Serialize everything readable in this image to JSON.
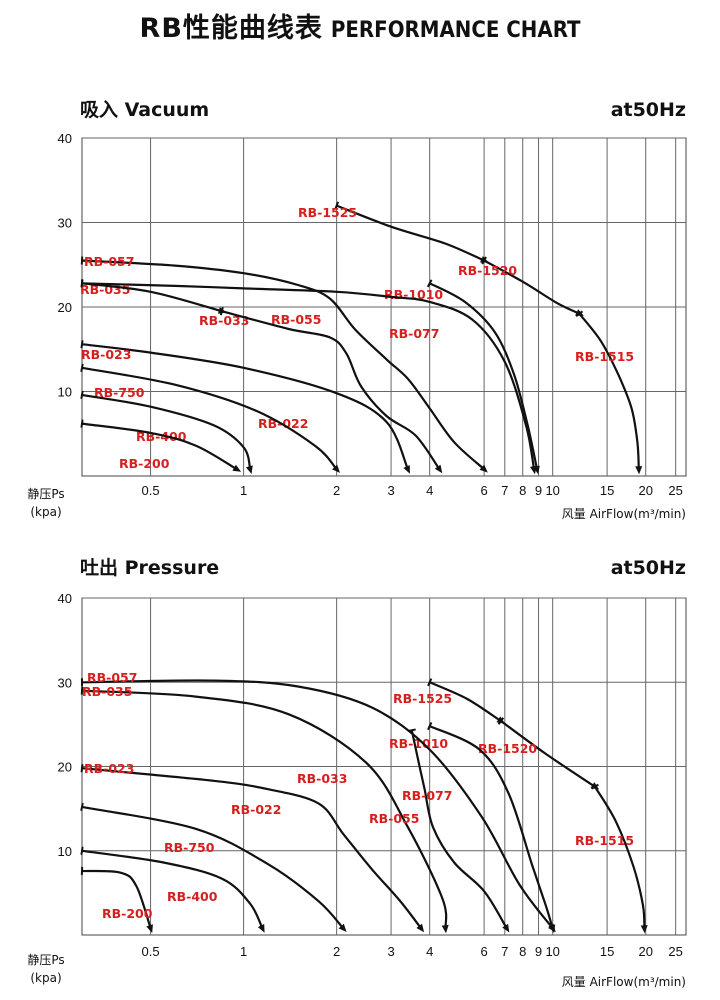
{
  "page": {
    "title": "RB性能曲线表",
    "title_en": "PERFORMANCE CHART"
  },
  "colors": {
    "curve": "#111111",
    "label": "#d62020",
    "grid": "#666666"
  },
  "chart_data": [
    {
      "type": "line",
      "title": "吸入 Vacuum",
      "frequency_label": "at50Hz",
      "ylabel": "静压Ps",
      "ylabel_unit": "(kpa)",
      "xlabel": "风量 AirFlow(m³/min)",
      "x_scale": "log",
      "xlim": [
        0.3,
        27
      ],
      "ylim": [
        0,
        40
      ],
      "x_ticks": [
        0.5,
        1,
        2,
        3,
        4,
        6,
        7,
        8,
        9,
        10,
        15,
        20,
        25
      ],
      "y_ticks": [
        10,
        20,
        30,
        40
      ],
      "grid": true,
      "series": [
        {
          "name": "RB-1525",
          "points": [
            [
              2,
              32
            ],
            [
              3,
              29.5
            ],
            [
              4.5,
              27.5
            ],
            [
              6,
              25.5
            ]
          ]
        },
        {
          "name": "RB-1520",
          "points": [
            [
              6,
              25.5
            ],
            [
              8,
              23
            ],
            [
              10.3,
              20.5
            ],
            [
              12.2,
              19.2
            ]
          ]
        },
        {
          "name": "RB-1515",
          "points": [
            [
              12.2,
              19.2
            ],
            [
              14.3,
              16
            ],
            [
              16.3,
              12
            ],
            [
              18,
              8
            ],
            [
              18.8,
              4
            ],
            [
              19,
              0.8
            ]
          ]
        },
        {
          "name": "RB-1010",
          "points": [
            [
              4,
              22.8
            ],
            [
              5.2,
              20.6
            ],
            [
              6.5,
              17
            ],
            [
              7.5,
              12
            ],
            [
              8.3,
              6
            ],
            [
              8.9,
              0.8
            ]
          ]
        },
        {
          "name": "RB-057",
          "points": [
            [
              0.3,
              25.5
            ],
            [
              0.6,
              24.9
            ],
            [
              1,
              24
            ],
            [
              1.5,
              22.6
            ],
            [
              1.9,
              21
            ],
            [
              2.3,
              17.3
            ],
            [
              2.9,
              13.8
            ],
            [
              3.4,
              11.5
            ],
            [
              4,
              8
            ],
            [
              4.8,
              4
            ],
            [
              6,
              0.8
            ]
          ]
        },
        {
          "name": "RB-035",
          "points": [
            [
              0.3,
              22.8
            ],
            [
              0.6,
              22.5
            ],
            [
              1,
              22.2
            ],
            [
              2,
              21.8
            ],
            [
              3,
              21.2
            ],
            [
              4,
              20.6
            ],
            [
              5.5,
              18.5
            ],
            [
              7,
              13.5
            ],
            [
              8.2,
              6
            ],
            [
              8.7,
              0.8
            ]
          ]
        },
        {
          "name": "RB-033",
          "points": [
            [
              0.3,
              22.8
            ],
            [
              0.5,
              21.8
            ],
            [
              0.85,
              19.5
            ]
          ]
        },
        {
          "name": "RB-055",
          "points": [
            [
              0.85,
              19.5
            ],
            [
              1.4,
              17.4
            ],
            [
              1.9,
              16.4
            ],
            [
              2.15,
              14.5
            ],
            [
              2.4,
              10.6
            ],
            [
              2.9,
              7.1
            ],
            [
              3.6,
              4.8
            ],
            [
              4.3,
              0.8
            ]
          ]
        },
        {
          "name": "RB-077",
          "points": []
        },
        {
          "name": "RB-023",
          "points": [
            [
              0.3,
              15.6
            ],
            [
              0.5,
              14.6
            ],
            [
              1,
              12.8
            ],
            [
              2,
              9.8
            ],
            [
              2.9,
              6.4
            ],
            [
              3.4,
              0.8
            ]
          ]
        },
        {
          "name": "RB-022",
          "points": []
        },
        {
          "name": "RB-750",
          "points": [
            [
              0.3,
              12.8
            ],
            [
              0.6,
              10.8
            ],
            [
              1.1,
              7.7
            ],
            [
              1.7,
              3.6
            ],
            [
              2,
              0.8
            ]
          ]
        },
        {
          "name": "RB-400",
          "points": [
            [
              0.3,
              9.6
            ],
            [
              0.5,
              8.2
            ],
            [
              0.8,
              6.0
            ],
            [
              1.0,
              3.4
            ],
            [
              1.05,
              0.8
            ]
          ]
        },
        {
          "name": "RB-200",
          "points": [
            [
              0.3,
              6.2
            ],
            [
              0.5,
              5.1
            ],
            [
              0.7,
              3.6
            ],
            [
              0.95,
              0.8
            ]
          ]
        }
      ]
    },
    {
      "type": "line",
      "title": "吐出 Pressure",
      "frequency_label": "at50Hz",
      "ylabel": "静压Ps",
      "ylabel_unit": "(kpa)",
      "xlabel": "风量 AirFlow(m³/min)",
      "x_scale": "log",
      "xlim": [
        0.3,
        27
      ],
      "ylim": [
        0,
        40
      ],
      "x_ticks": [
        0.5,
        1,
        2,
        3,
        4,
        6,
        7,
        8,
        9,
        10,
        15,
        20,
        25
      ],
      "y_ticks": [
        10,
        20,
        30,
        40
      ],
      "grid": true,
      "series": [
        {
          "name": "RB-1525",
          "points": [
            [
              4,
              30
            ],
            [
              5.3,
              28
            ],
            [
              6.8,
              25.4
            ]
          ]
        },
        {
          "name": "RB-1520",
          "points": [
            [
              6.8,
              25.4
            ],
            [
              9.5,
              21.5
            ],
            [
              13.7,
              17.6
            ]
          ]
        },
        {
          "name": "RB-1515",
          "points": [
            [
              13.7,
              17.6
            ],
            [
              16,
              13.5
            ],
            [
              18.3,
              8
            ],
            [
              19.6,
              3.5
            ],
            [
              19.8,
              0.8
            ]
          ]
        },
        {
          "name": "RB-1010",
          "points": [
            [
              4,
              24.8
            ],
            [
              5.8,
              22
            ],
            [
              7.2,
              16.8
            ],
            [
              8.6,
              8.2
            ],
            [
              9.5,
              3.5
            ],
            [
              10,
              0.8
            ]
          ]
        },
        {
          "name": "RB-057",
          "points": [
            [
              0.3,
              30
            ],
            [
              0.8,
              30.2
            ],
            [
              1.5,
              29.5
            ],
            [
              2.6,
              27
            ],
            [
              4,
              22
            ],
            [
              5.9,
              14
            ],
            [
              7.8,
              6
            ],
            [
              10,
              0.8
            ]
          ]
        },
        {
          "name": "RB-035",
          "points": [
            [
              0.3,
              29
            ],
            [
              0.7,
              28.3
            ],
            [
              1.4,
              26.2
            ],
            [
              2.5,
              20.4
            ],
            [
              3.4,
              12.8
            ],
            [
              4.4,
              4.3
            ],
            [
              4.5,
              0.8
            ]
          ]
        },
        {
          "name": "RB-033",
          "points": []
        },
        {
          "name": "RB-055",
          "points": [
            [
              3.5,
              24.3
            ],
            [
              3.7,
              20.2
            ],
            [
              3.85,
              17.3
            ],
            [
              4.1,
              12.8
            ],
            [
              4.8,
              8.6
            ],
            [
              6.0,
              5.2
            ],
            [
              7.1,
              0.8
            ]
          ]
        },
        {
          "name": "RB-077",
          "points": []
        },
        {
          "name": "RB-023",
          "points": [
            [
              0.3,
              19.8
            ],
            [
              0.8,
              18.3
            ],
            [
              1.2,
              17.3
            ],
            [
              1.75,
              15.6
            ],
            [
              2.1,
              12.0
            ],
            [
              2.6,
              7.8
            ],
            [
              3.2,
              4.1
            ],
            [
              3.75,
              0.8
            ]
          ]
        },
        {
          "name": "RB-022",
          "points": []
        },
        {
          "name": "RB-750",
          "points": [
            [
              0.3,
              15.2
            ],
            [
              0.7,
              12.6
            ],
            [
              1.2,
              8.4
            ],
            [
              1.75,
              4.0
            ],
            [
              2.1,
              0.8
            ]
          ]
        },
        {
          "name": "RB-400",
          "points": [
            [
              0.3,
              10
            ],
            [
              0.55,
              8.6
            ],
            [
              0.85,
              6.7
            ],
            [
              1.05,
              3.7
            ],
            [
              1.15,
              0.8
            ]
          ]
        },
        {
          "name": "RB-200",
          "points": [
            [
              0.3,
              7.6
            ],
            [
              0.4,
              7.4
            ],
            [
              0.45,
              5.8
            ],
            [
              0.5,
              0.8
            ]
          ]
        }
      ]
    }
  ]
}
